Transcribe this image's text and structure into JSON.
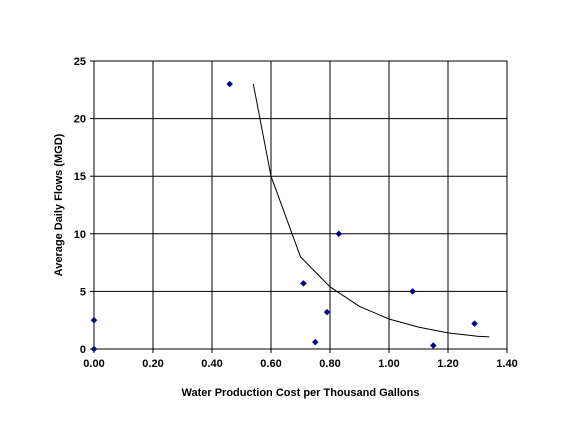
{
  "chart_data": {
    "type": "scatter",
    "xlabel": "Water Production Cost per Thousand Gallons",
    "ylabel": "Average Daily Flows (MGD)",
    "xlim": [
      0,
      1.4
    ],
    "ylim": [
      0,
      25
    ],
    "x_ticks": [
      "0.00",
      "0.20",
      "0.40",
      "0.60",
      "0.80",
      "1.00",
      "1.20",
      "1.40"
    ],
    "y_ticks": [
      "0",
      "5",
      "10",
      "15",
      "20",
      "25"
    ],
    "grid": true,
    "marker_color": "#000080",
    "points": [
      {
        "x": 0.0,
        "y": 2.5
      },
      {
        "x": 0.0,
        "y": 0.0
      },
      {
        "x": 0.46,
        "y": 23.0
      },
      {
        "x": 0.71,
        "y": 5.7
      },
      {
        "x": 0.75,
        "y": 0.6
      },
      {
        "x": 0.79,
        "y": 3.2
      },
      {
        "x": 0.83,
        "y": 10.0
      },
      {
        "x": 1.08,
        "y": 5.0
      },
      {
        "x": 1.15,
        "y": 0.3
      },
      {
        "x": 1.29,
        "y": 2.2
      }
    ],
    "trendline": {
      "type": "power",
      "x": [
        0.54,
        0.6,
        0.7,
        0.8,
        0.9,
        1.0,
        1.1,
        1.2,
        1.3,
        1.34
      ],
      "y": [
        23.0,
        15.0,
        8.0,
        5.4,
        3.7,
        2.6,
        1.9,
        1.4,
        1.1,
        1.05
      ]
    }
  }
}
